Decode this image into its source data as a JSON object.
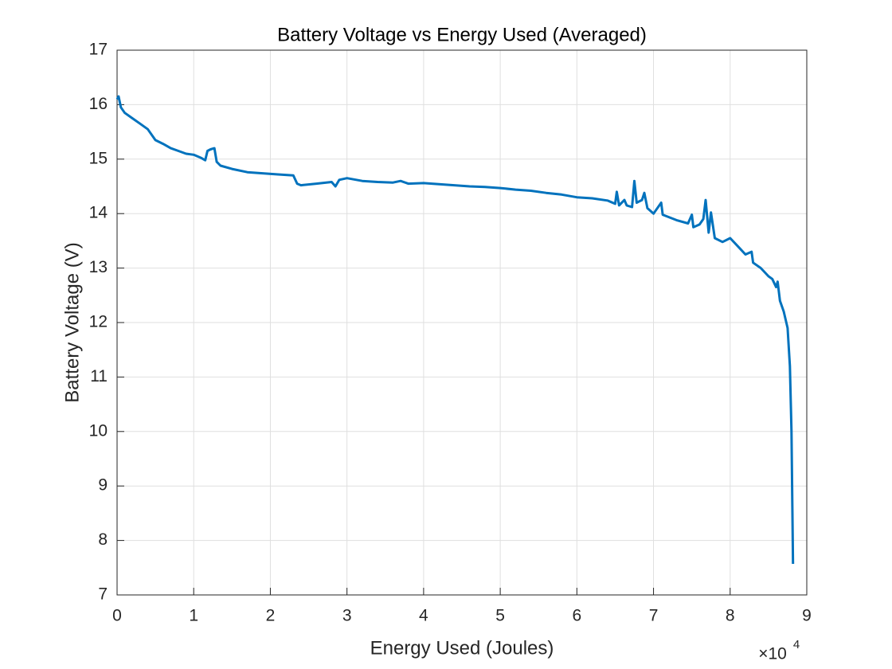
{
  "chart_data": {
    "type": "line",
    "title": "Battery Voltage vs Energy Used (Averaged)",
    "x_label": "Energy Used (Joules)",
    "y_label": "Battery Voltage (V)",
    "x_multiplier": "×10",
    "x_exponent": 4,
    "xlim": [
      0,
      9
    ],
    "xticks": [
      0,
      1,
      2,
      3,
      4,
      5,
      6,
      7,
      8,
      9
    ],
    "ylim": [
      7,
      17
    ],
    "yticks": [
      7,
      8,
      9,
      10,
      11,
      12,
      13,
      14,
      15,
      16,
      17
    ],
    "grid": true,
    "series": [
      {
        "name": "Battery Voltage",
        "color": "#0072bd",
        "x": [
          0,
          0.02,
          0.05,
          0.1,
          0.2,
          0.3,
          0.4,
          0.5,
          0.6,
          0.7,
          0.8,
          0.9,
          1.0,
          1.1,
          1.15,
          1.18,
          1.22,
          1.27,
          1.3,
          1.35,
          1.5,
          1.7,
          1.9,
          2.1,
          2.3,
          2.35,
          2.4,
          2.6,
          2.8,
          2.85,
          2.9,
          3.0,
          3.2,
          3.4,
          3.6,
          3.7,
          3.8,
          4.0,
          4.2,
          4.4,
          4.6,
          4.8,
          5.0,
          5.2,
          5.4,
          5.6,
          5.8,
          6.0,
          6.2,
          6.4,
          6.5,
          6.52,
          6.55,
          6.62,
          6.65,
          6.72,
          6.75,
          6.78,
          6.85,
          6.88,
          6.92,
          7.0,
          7.1,
          7.12,
          7.3,
          7.45,
          7.5,
          7.52,
          7.6,
          7.65,
          7.68,
          7.72,
          7.75,
          7.8,
          7.9,
          8.0,
          8.1,
          8.2,
          8.28,
          8.3,
          8.4,
          8.5,
          8.55,
          8.6,
          8.62,
          8.65,
          8.7,
          8.75,
          8.78,
          8.8,
          8.82
        ],
        "values": [
          16.1,
          16.15,
          15.95,
          15.85,
          15.75,
          15.65,
          15.55,
          15.35,
          15.28,
          15.2,
          15.15,
          15.1,
          15.08,
          15.02,
          14.98,
          15.15,
          15.18,
          15.2,
          14.95,
          14.88,
          14.82,
          14.76,
          14.74,
          14.72,
          14.7,
          14.55,
          14.52,
          14.55,
          14.58,
          14.5,
          14.62,
          14.65,
          14.6,
          14.58,
          14.57,
          14.6,
          14.55,
          14.56,
          14.54,
          14.52,
          14.5,
          14.49,
          14.47,
          14.44,
          14.42,
          14.38,
          14.35,
          14.3,
          14.28,
          14.24,
          14.18,
          14.4,
          14.15,
          14.25,
          14.15,
          14.12,
          14.6,
          14.2,
          14.25,
          14.38,
          14.1,
          14.0,
          14.2,
          13.98,
          13.88,
          13.82,
          13.98,
          13.75,
          13.8,
          13.9,
          14.25,
          13.65,
          14.02,
          13.55,
          13.48,
          13.55,
          13.4,
          13.25,
          13.3,
          13.1,
          13.0,
          12.85,
          12.8,
          12.65,
          12.75,
          12.4,
          12.2,
          11.9,
          11.2,
          10.0,
          7.57
        ]
      }
    ]
  }
}
